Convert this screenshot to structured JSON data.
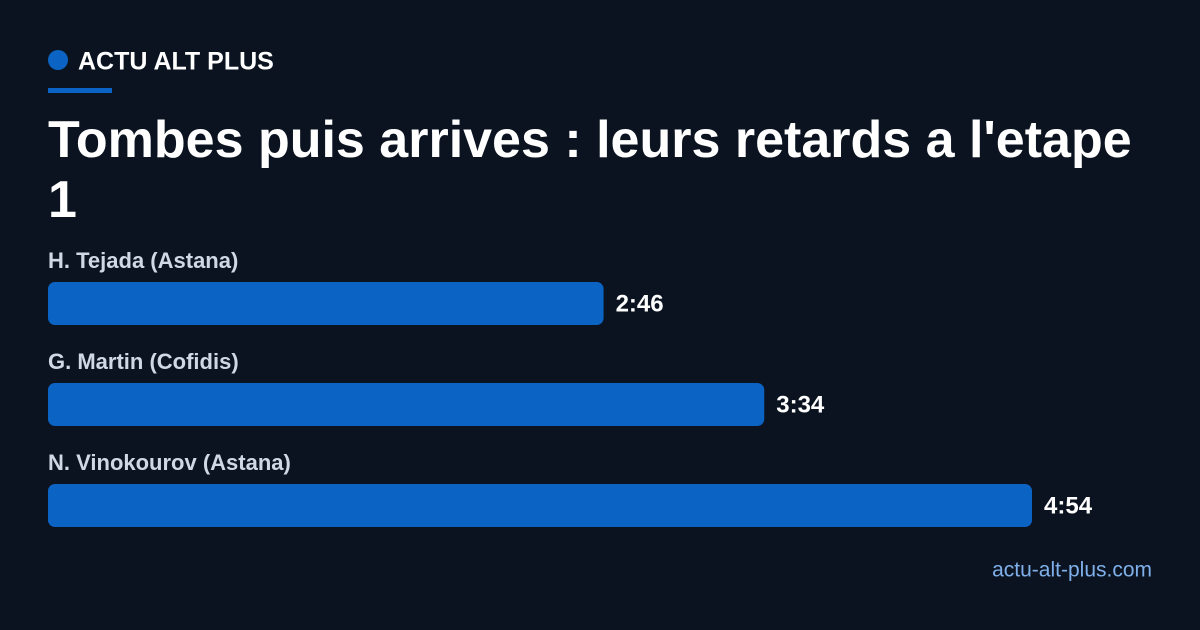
{
  "chart_data": {
    "type": "bar",
    "orientation": "horizontal",
    "brand": "ACTU ALT PLUS",
    "title": "Tombes puis arrives : leurs retards a l'etape 1",
    "source": "actu-alt-plus.com",
    "categories": [
      "H. Tejada (Astana)",
      "G. Martin (Cofidis)",
      "N. Vinokourov (Astana)"
    ],
    "values": [
      166,
      214,
      294
    ],
    "value_labels": [
      "2:46",
      "3:34",
      "4:54"
    ],
    "color": "#0b63c4"
  }
}
